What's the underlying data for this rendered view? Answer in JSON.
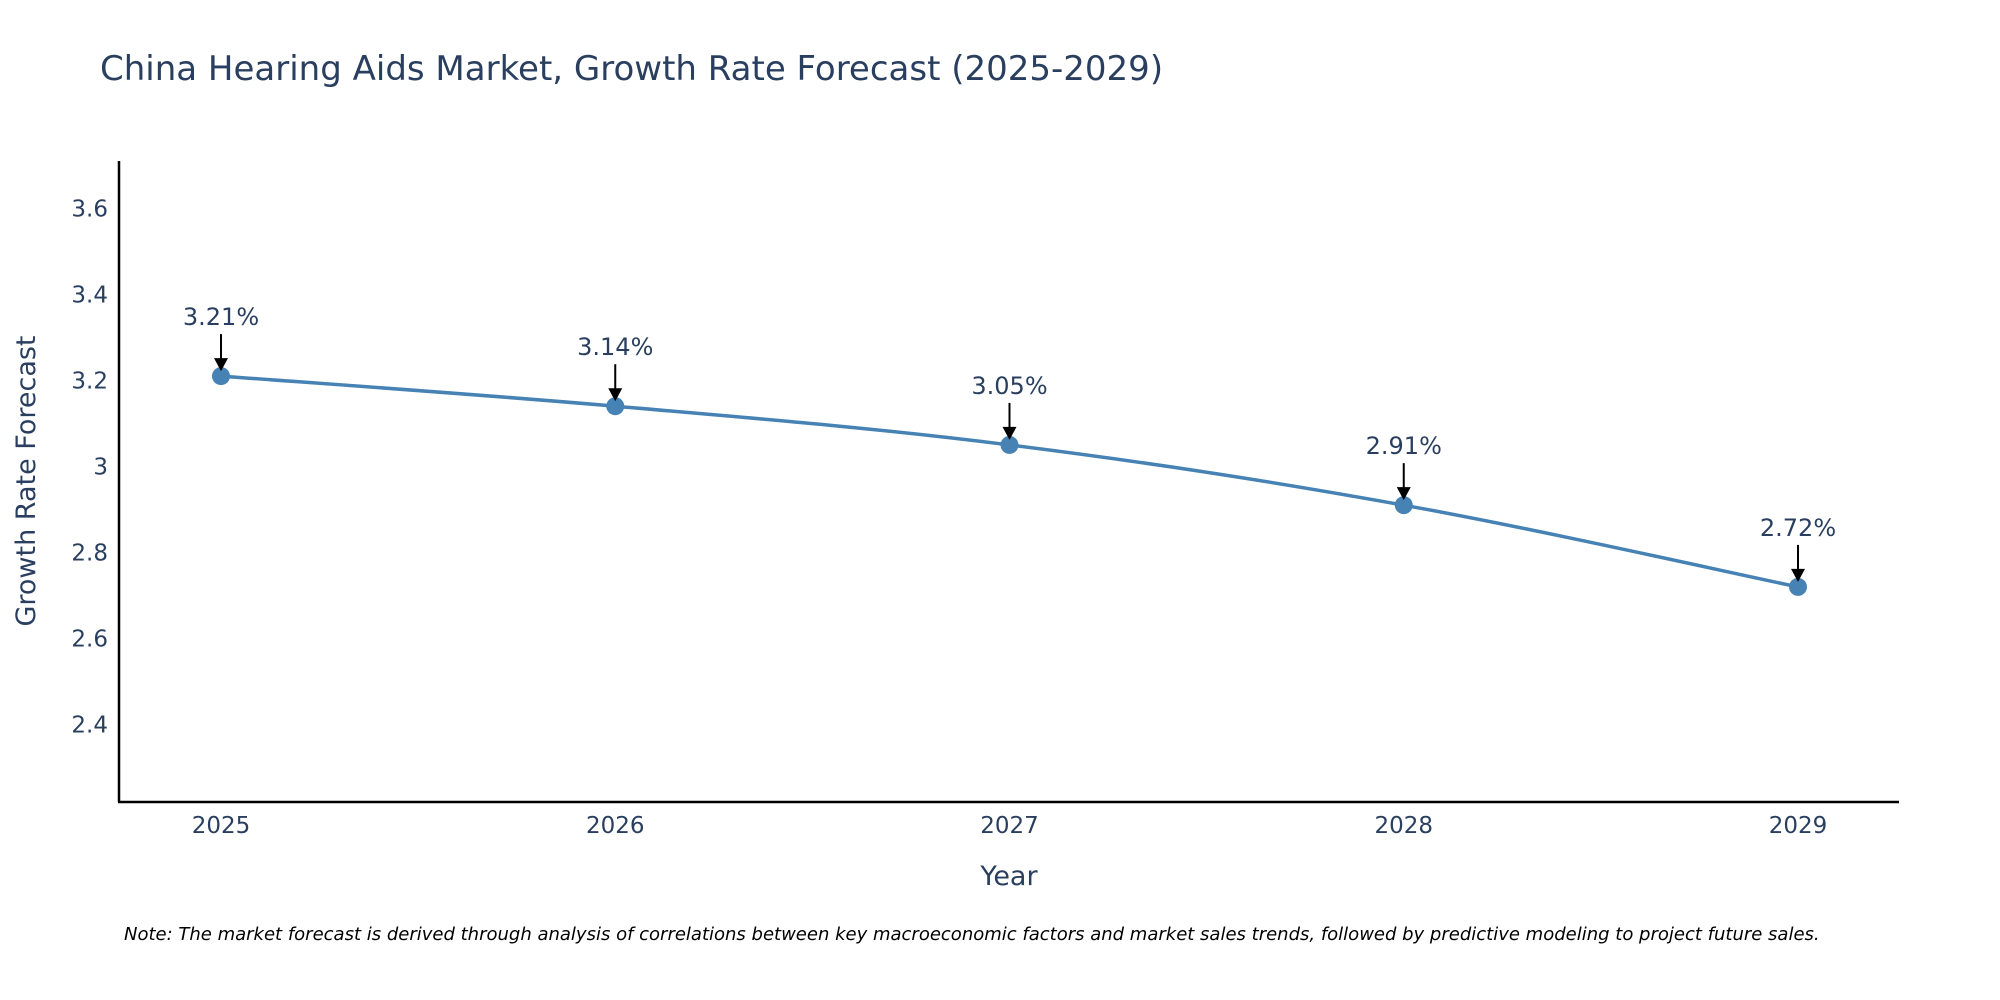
{
  "chart_data": {
    "type": "line",
    "title": "China Hearing Aids Market, Growth Rate Forecast (2025-2029)",
    "xlabel": "Year",
    "ylabel": "Growth Rate Forecast",
    "categories": [
      "2025",
      "2026",
      "2027",
      "2028",
      "2029"
    ],
    "series": [
      {
        "name": "Growth Rate Forecast",
        "values": [
          3.21,
          3.14,
          3.05,
          2.91,
          2.72
        ],
        "labels": [
          "3.21%",
          "3.14%",
          "3.05%",
          "2.91%",
          "2.72%"
        ]
      }
    ],
    "ylim": [
      2.22,
      3.71
    ],
    "yticks": [
      2.4,
      2.6,
      2.8,
      3,
      3.2,
      3.4,
      3.6
    ],
    "ytick_labels": [
      "2.4",
      "2.6",
      "2.8",
      "3",
      "3.2",
      "3.4",
      "3.6"
    ],
    "grid": false,
    "line_color": "#4682b4",
    "axis_color": "#000000",
    "note": "Note: The market forecast is derived through analysis of correlations between key macroeconomic factors and market sales trends, followed by predictive modeling to project future sales."
  }
}
